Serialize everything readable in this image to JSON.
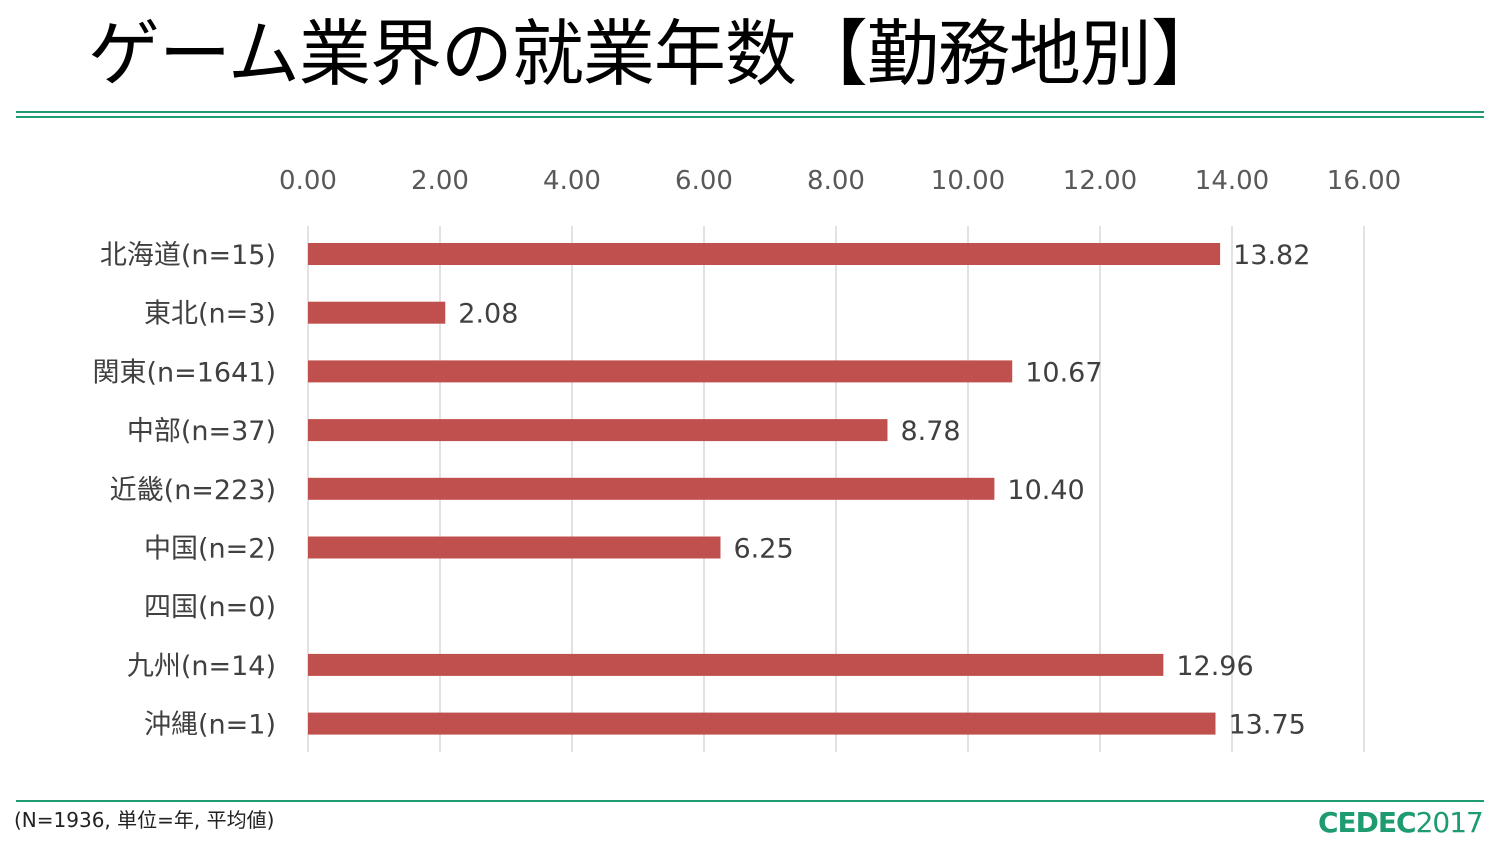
{
  "title": "ゲーム業界の就業年数【勤務地別】",
  "footnote": "(N=1936, 単位=年, 平均値)",
  "logo": {
    "brand": "CEDEC",
    "year": "2017"
  },
  "colors": {
    "bar": "#c0504d",
    "rule": "#1e9b6f",
    "gridline": "#d9d9d9"
  },
  "chart_data": {
    "type": "bar",
    "orientation": "horizontal",
    "title": "",
    "xlabel": "",
    "ylabel": "",
    "xlim": [
      0,
      16
    ],
    "axis_position": "top",
    "grid": true,
    "x_ticks": [
      "0.00",
      "2.00",
      "4.00",
      "6.00",
      "8.00",
      "10.00",
      "12.00",
      "14.00",
      "16.00"
    ],
    "categories": [
      "北海道(n=15)",
      "東北(n=3)",
      "関東(n=1641)",
      "中部(n=37)",
      "近畿(n=223)",
      "中国(n=2)",
      "四国(n=0)",
      "九州(n=14)",
      "沖縄(n=1)"
    ],
    "values": [
      13.82,
      2.08,
      10.67,
      8.78,
      10.4,
      6.25,
      null,
      12.96,
      13.75
    ],
    "value_labels": [
      "13.82",
      "2.08",
      "10.67",
      "8.78",
      "10.40",
      "6.25",
      "",
      "12.96",
      "13.75"
    ]
  }
}
